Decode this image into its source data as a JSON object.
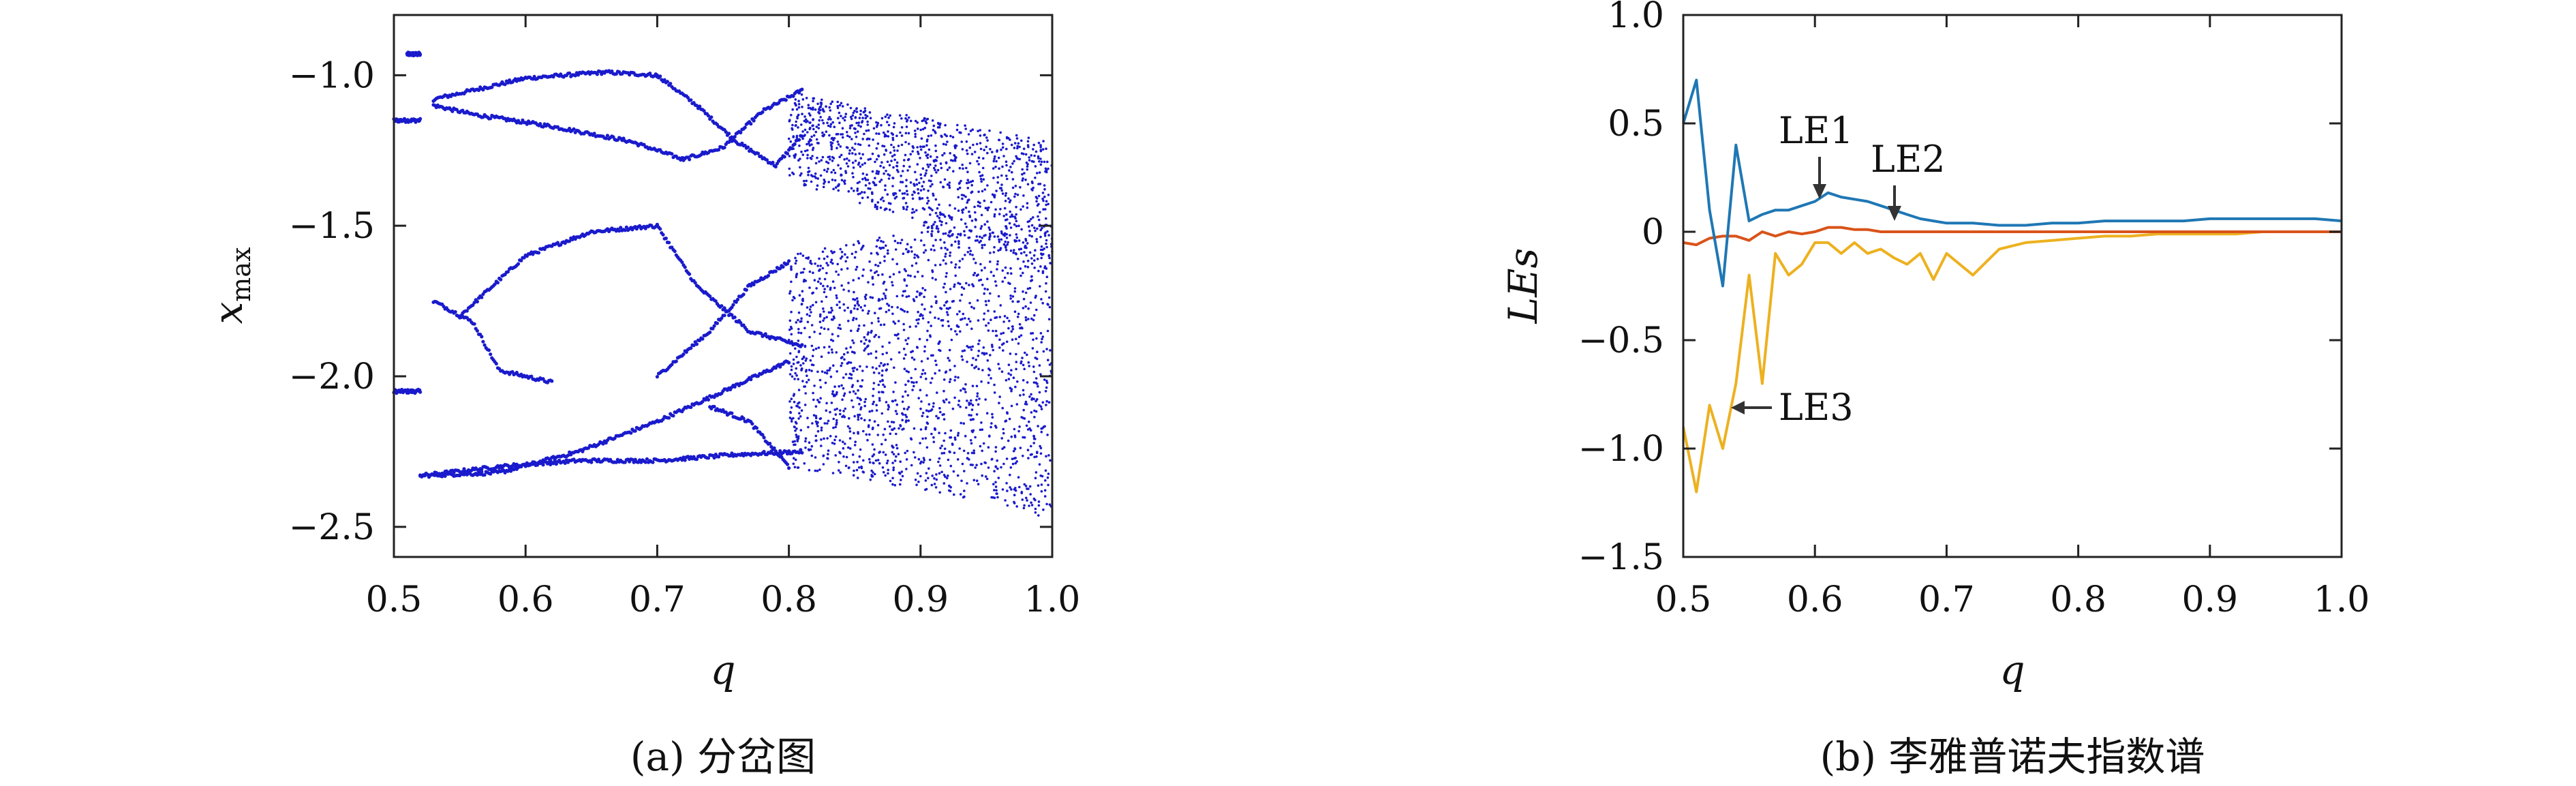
{
  "chart_data": [
    {
      "type": "scatter",
      "caption": "(a) 分岔图",
      "xlabel": "q",
      "ylabel": "x_max",
      "xlim": [
        0.5,
        1.0
      ],
      "ylim": [
        -2.6,
        -0.8
      ],
      "xticks": [
        "0.5",
        "0.6",
        "0.7",
        "0.8",
        "0.9",
        "1.0"
      ],
      "yticks": [
        "−1.0",
        "−1.5",
        "−2.0",
        "−2.5"
      ],
      "point_color": "#1a1acc",
      "branches": [
        {
          "q": [
            0.51,
            0.52
          ],
          "x": [
            -0.93,
            -0.93
          ]
        },
        {
          "q": [
            0.5,
            0.52
          ],
          "x": [
            -1.15,
            -1.15
          ]
        },
        {
          "q": [
            0.5,
            0.52
          ],
          "x": [
            -2.05,
            -2.05
          ]
        },
        {
          "q": [
            0.53,
            0.56,
            0.6,
            0.66,
            0.7
          ],
          "x": [
            -1.08,
            -1.05,
            -1.01,
            -0.99,
            -1.0
          ]
        },
        {
          "q": [
            0.53,
            0.56,
            0.62,
            0.68,
            0.72
          ],
          "x": [
            -1.1,
            -1.13,
            -1.17,
            -1.22,
            -1.28
          ]
        },
        {
          "q": [
            0.7,
            0.73,
            0.76,
            0.79,
            0.81
          ],
          "x": [
            -1.0,
            -1.1,
            -1.22,
            -1.3,
            -1.2
          ]
        },
        {
          "q": [
            0.72,
            0.75,
            0.78,
            0.81
          ],
          "x": [
            -1.28,
            -1.24,
            -1.12,
            -1.05
          ]
        },
        {
          "q": [
            0.55,
            0.6,
            0.65,
            0.7
          ],
          "x": [
            -1.8,
            -1.6,
            -1.52,
            -1.5
          ]
        },
        {
          "q": [
            0.53,
            0.56,
            0.58,
            0.62
          ],
          "x": [
            -1.75,
            -1.82,
            -1.98,
            -2.02
          ]
        },
        {
          "q": [
            0.52,
            0.58,
            0.64,
            0.7,
            0.75,
            0.8
          ],
          "x": [
            -2.33,
            -2.32,
            -2.25,
            -2.15,
            -2.05,
            -1.95
          ]
        },
        {
          "q": [
            0.52,
            0.58,
            0.64,
            0.7,
            0.76,
            0.81
          ],
          "x": [
            -2.33,
            -2.3,
            -2.28,
            -2.28,
            -2.26,
            -2.25
          ]
        },
        {
          "q": [
            0.7,
            0.73,
            0.77,
            0.81
          ],
          "x": [
            -1.5,
            -1.7,
            -1.85,
            -1.9
          ]
        },
        {
          "q": [
            0.7,
            0.74,
            0.77,
            0.8
          ],
          "x": [
            -2.0,
            -1.85,
            -1.7,
            -1.62
          ]
        },
        {
          "q": [
            0.74,
            0.77,
            0.8
          ],
          "x": [
            -2.1,
            -2.15,
            -2.3
          ]
        }
      ],
      "chaotic_band_upper": {
        "q": [
          0.8,
          0.85,
          0.9,
          0.95,
          1.0
        ],
        "x_hi": [
          -1.05,
          -1.1,
          -1.14,
          -1.18,
          -1.22
        ],
        "x_lo": [
          -1.35,
          -1.42,
          -1.5,
          -1.58,
          -1.65
        ]
      },
      "chaotic_band_lower": {
        "q": [
          0.8,
          0.85,
          0.9,
          0.95,
          1.0
        ],
        "x_hi": [
          -1.6,
          -1.55,
          -1.52,
          -1.5,
          -1.48
        ],
        "x_lo": [
          -2.3,
          -2.34,
          -2.38,
          -2.42,
          -2.48
        ]
      }
    },
    {
      "type": "line",
      "caption": "(b) 李雅普诺夫指数谱",
      "xlabel": "q",
      "ylabel": "LEs",
      "xlim": [
        0.5,
        1.0
      ],
      "ylim": [
        -1.5,
        1.0
      ],
      "xticks": [
        "0.5",
        "0.6",
        "0.7",
        "0.8",
        "0.9",
        "1.0"
      ],
      "yticks": [
        "1.0",
        "0.5",
        "0",
        "−0.5",
        "−1.0",
        "−1.5"
      ],
      "annotations": [
        "LE1",
        "LE2",
        "LE3"
      ],
      "x": [
        0.5,
        0.51,
        0.52,
        0.53,
        0.54,
        0.55,
        0.56,
        0.57,
        0.58,
        0.59,
        0.6,
        0.61,
        0.62,
        0.63,
        0.64,
        0.65,
        0.66,
        0.67,
        0.68,
        0.69,
        0.7,
        0.72,
        0.74,
        0.76,
        0.78,
        0.8,
        0.82,
        0.84,
        0.86,
        0.88,
        0.9,
        0.92,
        0.94,
        0.96,
        0.98,
        1.0
      ],
      "series": [
        {
          "color": "#1f77b4",
          "values": [
            0.5,
            0.7,
            0.1,
            -0.25,
            0.4,
            0.05,
            0.08,
            0.1,
            0.1,
            0.12,
            0.14,
            0.18,
            0.16,
            0.15,
            0.14,
            0.12,
            0.1,
            0.08,
            0.06,
            0.05,
            0.04,
            0.04,
            0.03,
            0.03,
            0.04,
            0.04,
            0.05,
            0.05,
            0.05,
            0.05,
            0.06,
            0.06,
            0.06,
            0.06,
            0.06,
            0.05
          ]
        },
        {
          "color": "#d95319",
          "values": [
            -0.05,
            -0.06,
            -0.03,
            -0.02,
            -0.02,
            -0.04,
            0.0,
            -0.02,
            0.0,
            -0.01,
            0.0,
            0.02,
            0.02,
            0.01,
            0.01,
            0.0,
            0.0,
            0.0,
            0.0,
            0.0,
            0.0,
            0.0,
            0.0,
            0.0,
            0.0,
            0.0,
            0.0,
            0.0,
            0.0,
            0.0,
            0.0,
            0.0,
            0.0,
            0.0,
            0.0,
            0.0
          ]
        },
        {
          "color": "#edb120",
          "values": [
            -0.9,
            -1.2,
            -0.8,
            -1.0,
            -0.7,
            -0.2,
            -0.7,
            -0.1,
            -0.2,
            -0.15,
            -0.05,
            -0.05,
            -0.1,
            -0.05,
            -0.1,
            -0.08,
            -0.12,
            -0.15,
            -0.1,
            -0.22,
            -0.1,
            -0.2,
            -0.08,
            -0.05,
            -0.04,
            -0.03,
            -0.02,
            -0.02,
            -0.01,
            -0.01,
            -0.01,
            -0.01,
            0.0,
            0.0,
            0.0,
            0.0
          ]
        }
      ]
    }
  ]
}
